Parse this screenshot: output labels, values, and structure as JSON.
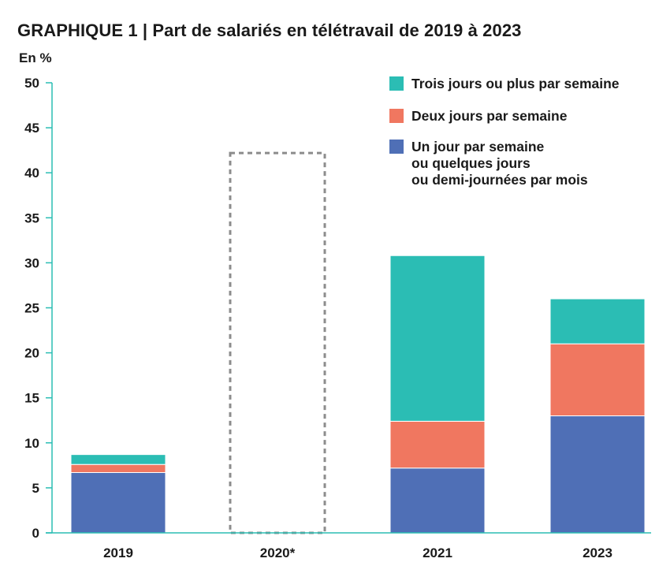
{
  "title": "GRAPHIQUE 1 | Part de salariés en télétravail de 2019 à 2023",
  "unit_label": "En %",
  "colors": {
    "trois_jours": "#2bbdb4",
    "deux_jours": "#f07760",
    "un_jour": "#4f6fb6",
    "axis": "#2bbdb4",
    "placeholder_outline": "#8c8c8c"
  },
  "legend": [
    {
      "label": "Trois jours ou plus par semaine",
      "color": "#2bbdb4"
    },
    {
      "label": "Deux jours par semaine",
      "color": "#f07760"
    },
    {
      "label_lines": [
        "Un jour par semaine",
        "ou quelques jours",
        "ou demi-journées par mois"
      ],
      "color": "#4f6fb6"
    }
  ],
  "chart_data": {
    "type": "bar",
    "stacked": true,
    "title": "GRAPHIQUE 1 | Part de salariés en télétravail de 2019 à 2023",
    "ylabel": "En %",
    "ylim": [
      0,
      50
    ],
    "yticks": [
      0,
      5,
      10,
      15,
      20,
      25,
      30,
      35,
      40,
      45,
      50
    ],
    "categories": [
      "2019",
      "2020*",
      "2021",
      "2023"
    ],
    "series": [
      {
        "name": "Un jour par semaine ou quelques jours ou demi-journées par mois",
        "color": "#4f6fb6",
        "values": [
          6.7,
          null,
          7.2,
          13.0
        ]
      },
      {
        "name": "Deux jours par semaine",
        "color": "#f07760",
        "values": [
          0.9,
          null,
          5.2,
          8.0
        ]
      },
      {
        "name": "Trois jours ou plus par semaine",
        "color": "#2bbdb4",
        "values": [
          1.1,
          null,
          18.4,
          5.0
        ]
      }
    ],
    "placeholder_bar": {
      "category": "2020*",
      "value": 42.2,
      "style": "dashed-outline"
    },
    "legend_position": "top-right",
    "grid": false
  }
}
